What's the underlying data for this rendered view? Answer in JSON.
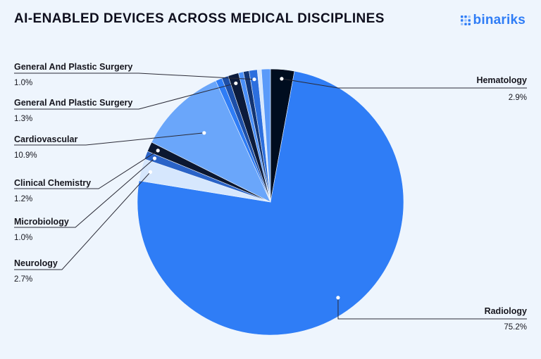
{
  "header": {
    "title": "AI-ENABLED DEVICES ACROSS MEDICAL DISCIPLINES",
    "logo_text": "binariks"
  },
  "colors": {
    "background": "#eef5fd",
    "leader_line": "#2a2a36",
    "logo": "#2f7df6"
  },
  "chart_data": {
    "type": "pie",
    "title": "AI-ENABLED DEVICES ACROSS MEDICAL DISCIPLINES",
    "unit": "%",
    "start_angle_deg": 0,
    "direction": "clockwise",
    "slices": [
      {
        "name": "Hematology",
        "value_label": "2.9%",
        "value": 2.9,
        "color": "#000d1f",
        "labeled": true
      },
      {
        "name": "Radiology",
        "value_label": "75.2%",
        "value": 75.2,
        "color": "#2f7df6",
        "labeled": true
      },
      {
        "name": "Neurology",
        "value_label": "2.7%",
        "value": 2.7,
        "color": "#d6e7fd",
        "labeled": true
      },
      {
        "name": "Microbiology",
        "value_label": "1.0%",
        "value": 1.0,
        "color": "#2a63c7",
        "labeled": true
      },
      {
        "name": "Clinical Chemistry",
        "value_label": "1.2%",
        "value": 1.2,
        "color": "#0b1730",
        "labeled": true
      },
      {
        "name": "Cardiovascular",
        "value_label": "10.9%",
        "value": 10.9,
        "color": "#6aa6fa",
        "labeled": true
      },
      {
        "name": "",
        "value_label": "",
        "value": 0.8,
        "color": "#2f7df6",
        "labeled": false
      },
      {
        "name": "",
        "value_label": "",
        "value": 0.8,
        "color": "#1d4fa8",
        "labeled": false
      },
      {
        "name": "General And Plastic Surgery",
        "value_label": "1.3%",
        "value": 1.3,
        "color": "#0c1b3b",
        "labeled": true
      },
      {
        "name": "",
        "value_label": "",
        "value": 0.6,
        "color": "#4a8ff8",
        "labeled": false
      },
      {
        "name": "",
        "value_label": "",
        "value": 0.7,
        "color": "#123472",
        "labeled": false
      },
      {
        "name": "General And Plastic Surgery",
        "value_label": "1.0%",
        "value": 1.0,
        "color": "#2c6fde",
        "labeled": true
      },
      {
        "name": "",
        "value_label": "",
        "value": 0.5,
        "color": "#d6e7fd",
        "labeled": false
      },
      {
        "name": "",
        "value_label": "",
        "value": 1.1,
        "color": "#5a9af9",
        "labeled": false
      }
    ]
  }
}
